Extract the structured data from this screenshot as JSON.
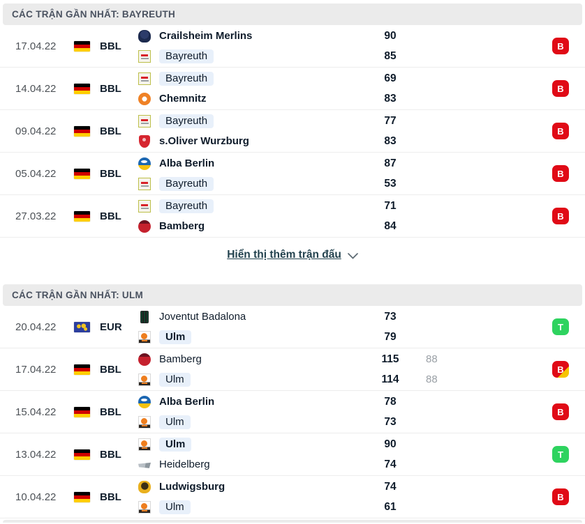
{
  "colors": {
    "header_bg": "#ebebeb",
    "highlight_pill_bg": "#e8f0fa",
    "loss_badge_red": "#e00a16",
    "win_badge_green": "#2ed35f",
    "ot_corner_yellow": "#f6c400",
    "text_dark": "#0f1c2b",
    "muted_score_gray": "#9aa0a6"
  },
  "sections": [
    {
      "title": "CÁC TRẬN GẦN NHẤT: BAYREUTH",
      "show_more": "Hiển thị thêm trận đấu",
      "matches": [
        {
          "date": "17.04.22",
          "flag": "germany",
          "league": "BBL",
          "home": {
            "name": "Crailsheim Merlins",
            "logo": "crailsheim",
            "score": "90",
            "ot": "",
            "bold": true,
            "highlight": false
          },
          "away": {
            "name": "Bayreuth",
            "logo": "bayreuth",
            "score": "85",
            "ot": "",
            "bold": false,
            "highlight": true
          },
          "result": {
            "label": "B",
            "variant": "red"
          }
        },
        {
          "date": "14.04.22",
          "flag": "germany",
          "league": "BBL",
          "home": {
            "name": "Bayreuth",
            "logo": "bayreuth",
            "score": "69",
            "ot": "",
            "bold": false,
            "highlight": true
          },
          "away": {
            "name": "Chemnitz",
            "logo": "chemnitz",
            "score": "83",
            "ot": "",
            "bold": true,
            "highlight": false
          },
          "result": {
            "label": "B",
            "variant": "red"
          }
        },
        {
          "date": "09.04.22",
          "flag": "germany",
          "league": "BBL",
          "home": {
            "name": "Bayreuth",
            "logo": "bayreuth",
            "score": "77",
            "ot": "",
            "bold": false,
            "highlight": true
          },
          "away": {
            "name": "s.Oliver Wurzburg",
            "logo": "wurzburg",
            "score": "83",
            "ot": "",
            "bold": true,
            "highlight": false
          },
          "result": {
            "label": "B",
            "variant": "red"
          }
        },
        {
          "date": "05.04.22",
          "flag": "germany",
          "league": "BBL",
          "home": {
            "name": "Alba Berlin",
            "logo": "alba",
            "score": "87",
            "ot": "",
            "bold": true,
            "highlight": false
          },
          "away": {
            "name": "Bayreuth",
            "logo": "bayreuth",
            "score": "53",
            "ot": "",
            "bold": false,
            "highlight": true
          },
          "result": {
            "label": "B",
            "variant": "red"
          }
        },
        {
          "date": "27.03.22",
          "flag": "germany",
          "league": "BBL",
          "home": {
            "name": "Bayreuth",
            "logo": "bayreuth",
            "score": "71",
            "ot": "",
            "bold": false,
            "highlight": true
          },
          "away": {
            "name": "Bamberg",
            "logo": "bamberg",
            "score": "84",
            "ot": "",
            "bold": true,
            "highlight": false
          },
          "result": {
            "label": "B",
            "variant": "red"
          }
        }
      ]
    },
    {
      "title": "CÁC TRẬN GẦN NHẤT: ULM",
      "show_more": null,
      "matches": [
        {
          "date": "20.04.22",
          "flag": "eur",
          "league": "EUR",
          "home": {
            "name": "Joventut Badalona",
            "logo": "joventut",
            "score": "73",
            "ot": "",
            "bold": false,
            "highlight": false
          },
          "away": {
            "name": "Ulm",
            "logo": "ulm",
            "score": "79",
            "ot": "",
            "bold": true,
            "highlight": true
          },
          "result": {
            "label": "T",
            "variant": "green"
          }
        },
        {
          "date": "17.04.22",
          "flag": "germany",
          "league": "BBL",
          "home": {
            "name": "Bamberg",
            "logo": "bamberg",
            "score": "115",
            "ot": "88",
            "bold": false,
            "highlight": false
          },
          "away": {
            "name": "Ulm",
            "logo": "ulm",
            "score": "114",
            "ot": "88",
            "bold": false,
            "highlight": true
          },
          "result": {
            "label": "B",
            "variant": "red-ot"
          }
        },
        {
          "date": "15.04.22",
          "flag": "germany",
          "league": "BBL",
          "home": {
            "name": "Alba Berlin",
            "logo": "alba",
            "score": "78",
            "ot": "",
            "bold": true,
            "highlight": false
          },
          "away": {
            "name": "Ulm",
            "logo": "ulm",
            "score": "73",
            "ot": "",
            "bold": false,
            "highlight": true
          },
          "result": {
            "label": "B",
            "variant": "red"
          }
        },
        {
          "date": "13.04.22",
          "flag": "germany",
          "league": "BBL",
          "home": {
            "name": "Ulm",
            "logo": "ulm",
            "score": "90",
            "ot": "",
            "bold": true,
            "highlight": true
          },
          "away": {
            "name": "Heidelberg",
            "logo": "heidelberg",
            "score": "74",
            "ot": "",
            "bold": false,
            "highlight": false
          },
          "result": {
            "label": "T",
            "variant": "green"
          }
        },
        {
          "date": "10.04.22",
          "flag": "germany",
          "league": "BBL",
          "home": {
            "name": "Ludwigsburg",
            "logo": "ludwigsburg",
            "score": "74",
            "ot": "",
            "bold": true,
            "highlight": false
          },
          "away": {
            "name": "Ulm",
            "logo": "ulm",
            "score": "61",
            "ot": "",
            "bold": false,
            "highlight": true
          },
          "result": {
            "label": "B",
            "variant": "red"
          }
        }
      ]
    }
  ]
}
